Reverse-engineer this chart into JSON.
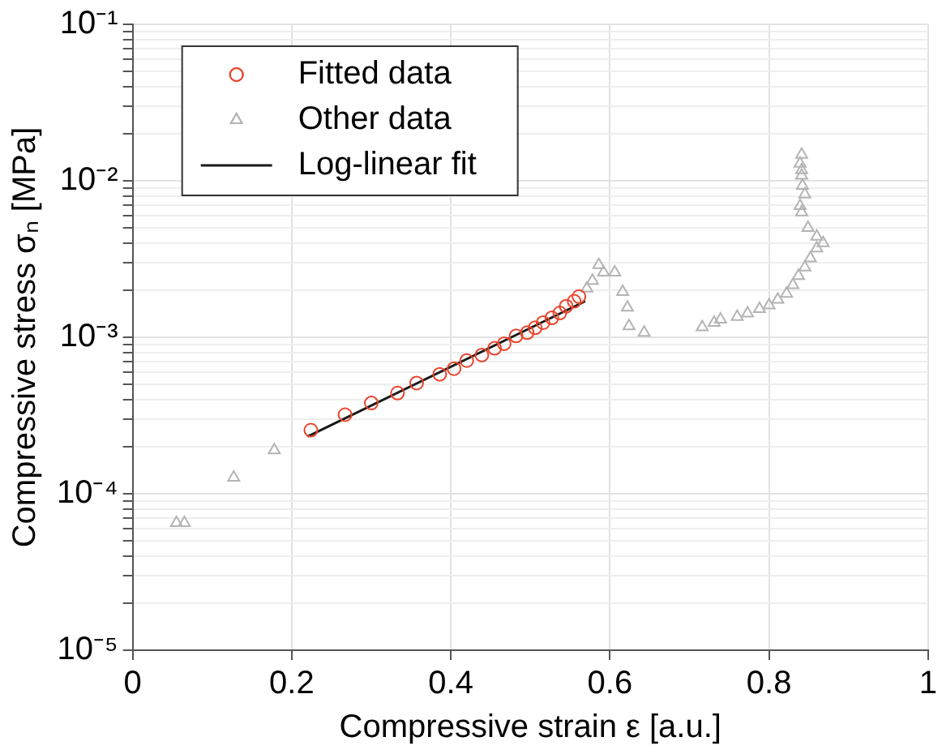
{
  "chart_data": {
    "type": "scatter",
    "xlabel": "Compressive strain ε [a.u.]",
    "ylabel": "Compressive stress σₙ [MPa]",
    "xlim": [
      0,
      1
    ],
    "xticks": [
      0,
      0.2,
      0.4,
      0.6,
      0.8,
      1
    ],
    "ylim": [
      1e-05,
      0.1
    ],
    "yticks": [
      {
        "value": 1e-05,
        "label": "10⁻⁵"
      },
      {
        "value": 2e-05,
        "label": null
      },
      {
        "value": 3e-05,
        "label": null
      },
      {
        "value": 4e-05,
        "label": null
      },
      {
        "value": 5e-05,
        "label": null
      },
      {
        "value": 6e-05,
        "label": null
      },
      {
        "value": 7e-05,
        "label": null
      },
      {
        "value": 8e-05,
        "label": null
      },
      {
        "value": 9e-05,
        "label": null
      },
      {
        "value": 0.0001,
        "label": "10⁻⁴"
      },
      {
        "value": 0.0002,
        "label": null
      },
      {
        "value": 0.0003,
        "label": null
      },
      {
        "value": 0.0004,
        "label": null
      },
      {
        "value": 0.0005,
        "label": null
      },
      {
        "value": 0.0006,
        "label": null
      },
      {
        "value": 0.0007,
        "label": null
      },
      {
        "value": 0.0008,
        "label": null
      },
      {
        "value": 0.0009,
        "label": null
      },
      {
        "value": 0.001,
        "label": "10⁻³"
      },
      {
        "value": 0.002,
        "label": null
      },
      {
        "value": 0.003,
        "label": null
      },
      {
        "value": 0.004,
        "label": null
      },
      {
        "value": 0.005,
        "label": null
      },
      {
        "value": 0.006,
        "label": null
      },
      {
        "value": 0.007,
        "label": null
      },
      {
        "value": 0.008,
        "label": null
      },
      {
        "value": 0.009,
        "label": null
      },
      {
        "value": 0.01,
        "label": "10⁻²"
      },
      {
        "value": 0.02,
        "label": null
      },
      {
        "value": 0.03,
        "label": null
      },
      {
        "value": 0.04,
        "label": null
      },
      {
        "value": 0.05,
        "label": null
      },
      {
        "value": 0.06,
        "label": null
      },
      {
        "value": 0.07,
        "label": null
      },
      {
        "value": 0.08,
        "label": null
      },
      {
        "value": 0.09,
        "label": null
      },
      {
        "value": 0.1,
        "label": "10⁻¹"
      }
    ],
    "log": "y",
    "grid": true,
    "legend": "top left",
    "series": [
      {
        "name": "Fitted data",
        "type": "scatter",
        "marker": "circle",
        "color": "#e8452c",
        "x": [
          0.224,
          0.267,
          0.3,
          0.333,
          0.357,
          0.386,
          0.404,
          0.42,
          0.439,
          0.455,
          0.467,
          0.482,
          0.496,
          0.506,
          0.516,
          0.527,
          0.537,
          0.545,
          0.555,
          0.561
        ],
        "values": [
          0.000255,
          0.00032,
          0.00038,
          0.00044,
          0.00051,
          0.00058,
          0.00063,
          0.00071,
          0.00077,
          0.00085,
          0.00091,
          0.00102,
          0.00107,
          0.00115,
          0.00124,
          0.00133,
          0.00143,
          0.00158,
          0.0017,
          0.00182
        ]
      },
      {
        "name": "Other data",
        "type": "scatter",
        "marker": "triangle",
        "color": "#b4b4b4",
        "x": [
          0.055,
          0.065,
          0.127,
          0.178,
          0.571,
          0.578,
          0.586,
          0.592,
          0.606,
          0.616,
          0.622,
          0.624,
          0.643,
          0.716,
          0.731,
          0.739,
          0.76,
          0.773,
          0.788,
          0.8,
          0.811,
          0.822,
          0.83,
          0.837,
          0.845,
          0.852,
          0.86,
          0.868,
          0.86,
          0.849,
          0.841,
          0.839,
          0.845,
          0.842,
          0.841,
          0.841,
          0.839,
          0.841
        ],
        "values": [
          6.5e-05,
          6.5e-05,
          0.000127,
          0.00019,
          0.00205,
          0.0023,
          0.0029,
          0.0026,
          0.0026,
          0.00195,
          0.00155,
          0.00118,
          0.00107,
          0.00116,
          0.00124,
          0.0013,
          0.00135,
          0.00142,
          0.00152,
          0.0016,
          0.00174,
          0.0019,
          0.00216,
          0.00247,
          0.0028,
          0.0032,
          0.0037,
          0.004,
          0.0044,
          0.005,
          0.0063,
          0.0069,
          0.0082,
          0.0093,
          0.0108,
          0.0117,
          0.0129,
          0.0147
        ]
      },
      {
        "name": "Log-linear fit",
        "type": "line",
        "marker": "none",
        "line_style": "solid",
        "color": "#1a1a1a",
        "x": [
          0.22,
          0.569
        ],
        "values": [
          0.000232,
          0.0017
        ]
      }
    ]
  }
}
